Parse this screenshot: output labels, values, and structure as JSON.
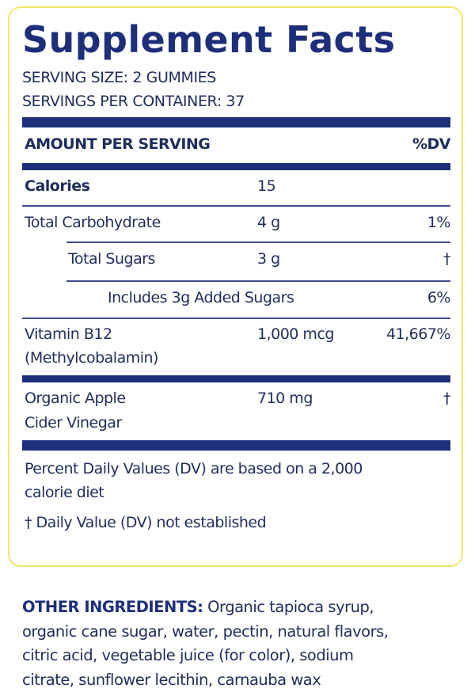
{
  "panel": {
    "title": "Supplement Facts",
    "serving_size": "SERVING SIZE: 2 GUMMIES",
    "servings_per_container": "SERVINGS PER CONTAINER: 37",
    "header": {
      "amount": "AMOUNT PER SERVING",
      "dv": "%DV"
    },
    "rows": [
      {
        "name": "Calories",
        "amount": "15",
        "dv": ""
      },
      {
        "name": "Total Carbohydrate",
        "amount": "4 g",
        "dv": "1%"
      },
      {
        "name": "Total Sugars",
        "amount": "3 g",
        "dv": "†"
      },
      {
        "name": "Includes 3g Added Sugars",
        "amount": "",
        "dv": "6%"
      },
      {
        "name_line1": "Vitamin B12",
        "name_line2": "(Methylcobalamin)",
        "amount": "1,000 mcg",
        "dv": "41,667%"
      },
      {
        "name_line1": "Organic Apple",
        "name_line2": "Cider Vinegar",
        "amount": "710 mg",
        "dv": "†"
      }
    ],
    "footnote_line1": "Percent Daily Values (DV) are based on a 2,000",
    "footnote_line2": "calorie diet",
    "footnote_dagger": "† Daily Value (DV) not established"
  },
  "ingredients": {
    "label": "OTHER INGREDIENTS:",
    "line1": "Organic tapioca syrup,",
    "line2": "organic cane sugar, water, pectin, natural flavors,",
    "line3": "citric acid, vegetable juice (for color), sodium",
    "line4": "citrate, sunflower lecithin, carnauba wax"
  },
  "colors": {
    "navy": "#1d2f7a",
    "border_yellow": "#f2e56a"
  }
}
